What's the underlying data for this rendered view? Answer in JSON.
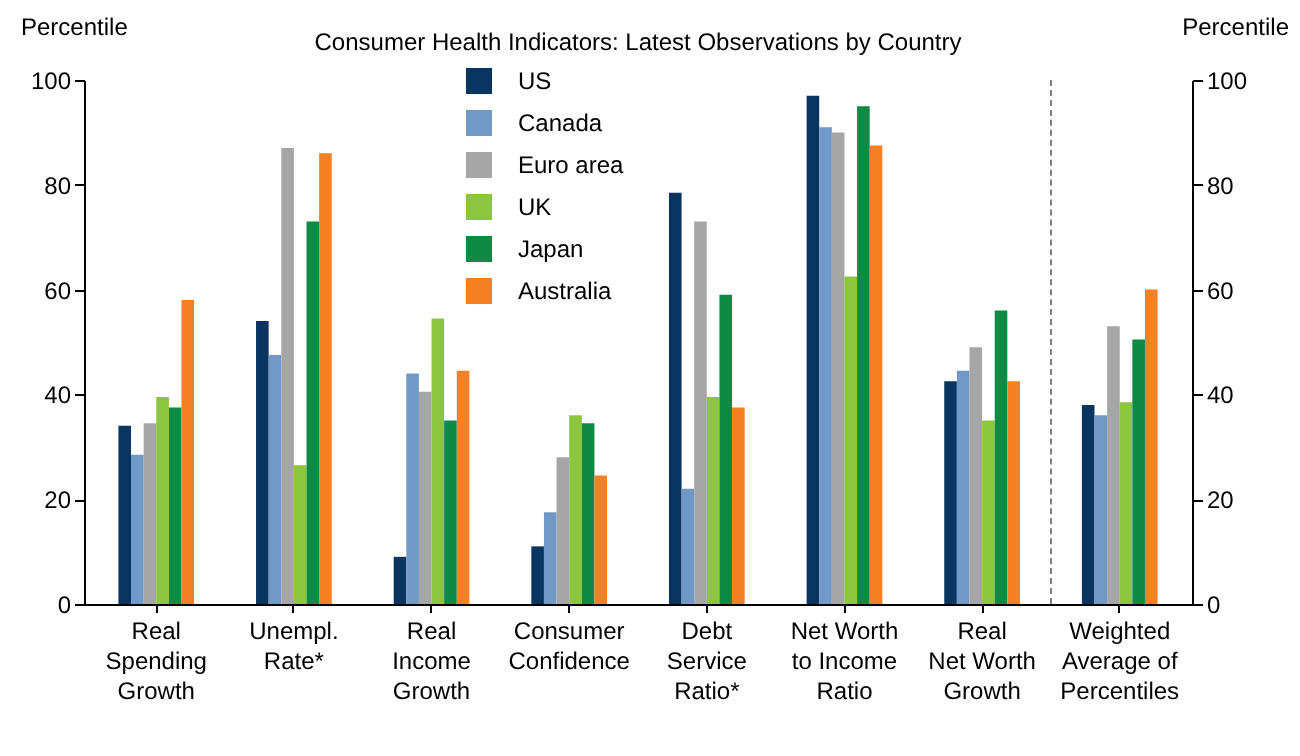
{
  "chart_data": {
    "type": "bar",
    "title": "Consumer Health Indicators: Latest Observations by Country",
    "ylabel": "Percentile",
    "y2label": "Percentile",
    "categories": [
      "Real\nSpending\nGrowth",
      "Unempl.\nRate*",
      "Real\nIncome\nGrowth",
      "Consumer\nConfidence",
      "Debt\nService\nRatio*",
      "Net Worth\nto Income\nRatio",
      "Real\nNet Worth\nGrowth",
      "Weighted\nAverage of\nPercentiles"
    ],
    "series": [
      {
        "name": "US",
        "color": "#0a3560",
        "values": [
          34,
          54,
          9,
          11,
          78.5,
          97,
          42.5,
          38
        ]
      },
      {
        "name": "Canada",
        "color": "#7199c8",
        "values": [
          28.5,
          47.5,
          44,
          17.5,
          22,
          91,
          44.5,
          36
        ]
      },
      {
        "name": "Euro area",
        "color": "#a6a6a6",
        "values": [
          34.5,
          87,
          40.5,
          28,
          73,
          90,
          49,
          53
        ]
      },
      {
        "name": "UK",
        "color": "#8cc63f",
        "values": [
          39.5,
          26.5,
          54.5,
          36,
          39.5,
          62.5,
          35,
          38.5
        ]
      },
      {
        "name": "Japan",
        "color": "#0f8a45",
        "values": [
          37.5,
          73,
          35,
          34.5,
          59,
          95,
          56,
          50.5
        ]
      },
      {
        "name": "Australia",
        "color": "#f58025",
        "values": [
          58,
          86,
          44.5,
          24.5,
          37.5,
          87.5,
          42.5,
          60
        ]
      }
    ],
    "ylim": [
      0,
      100
    ],
    "yticks": [
      0,
      20,
      40,
      60,
      80,
      100
    ],
    "y2lim": [
      0,
      100
    ],
    "y2ticks": [
      0,
      20,
      40,
      60,
      80,
      100
    ],
    "grid": false,
    "legend": "top"
  }
}
